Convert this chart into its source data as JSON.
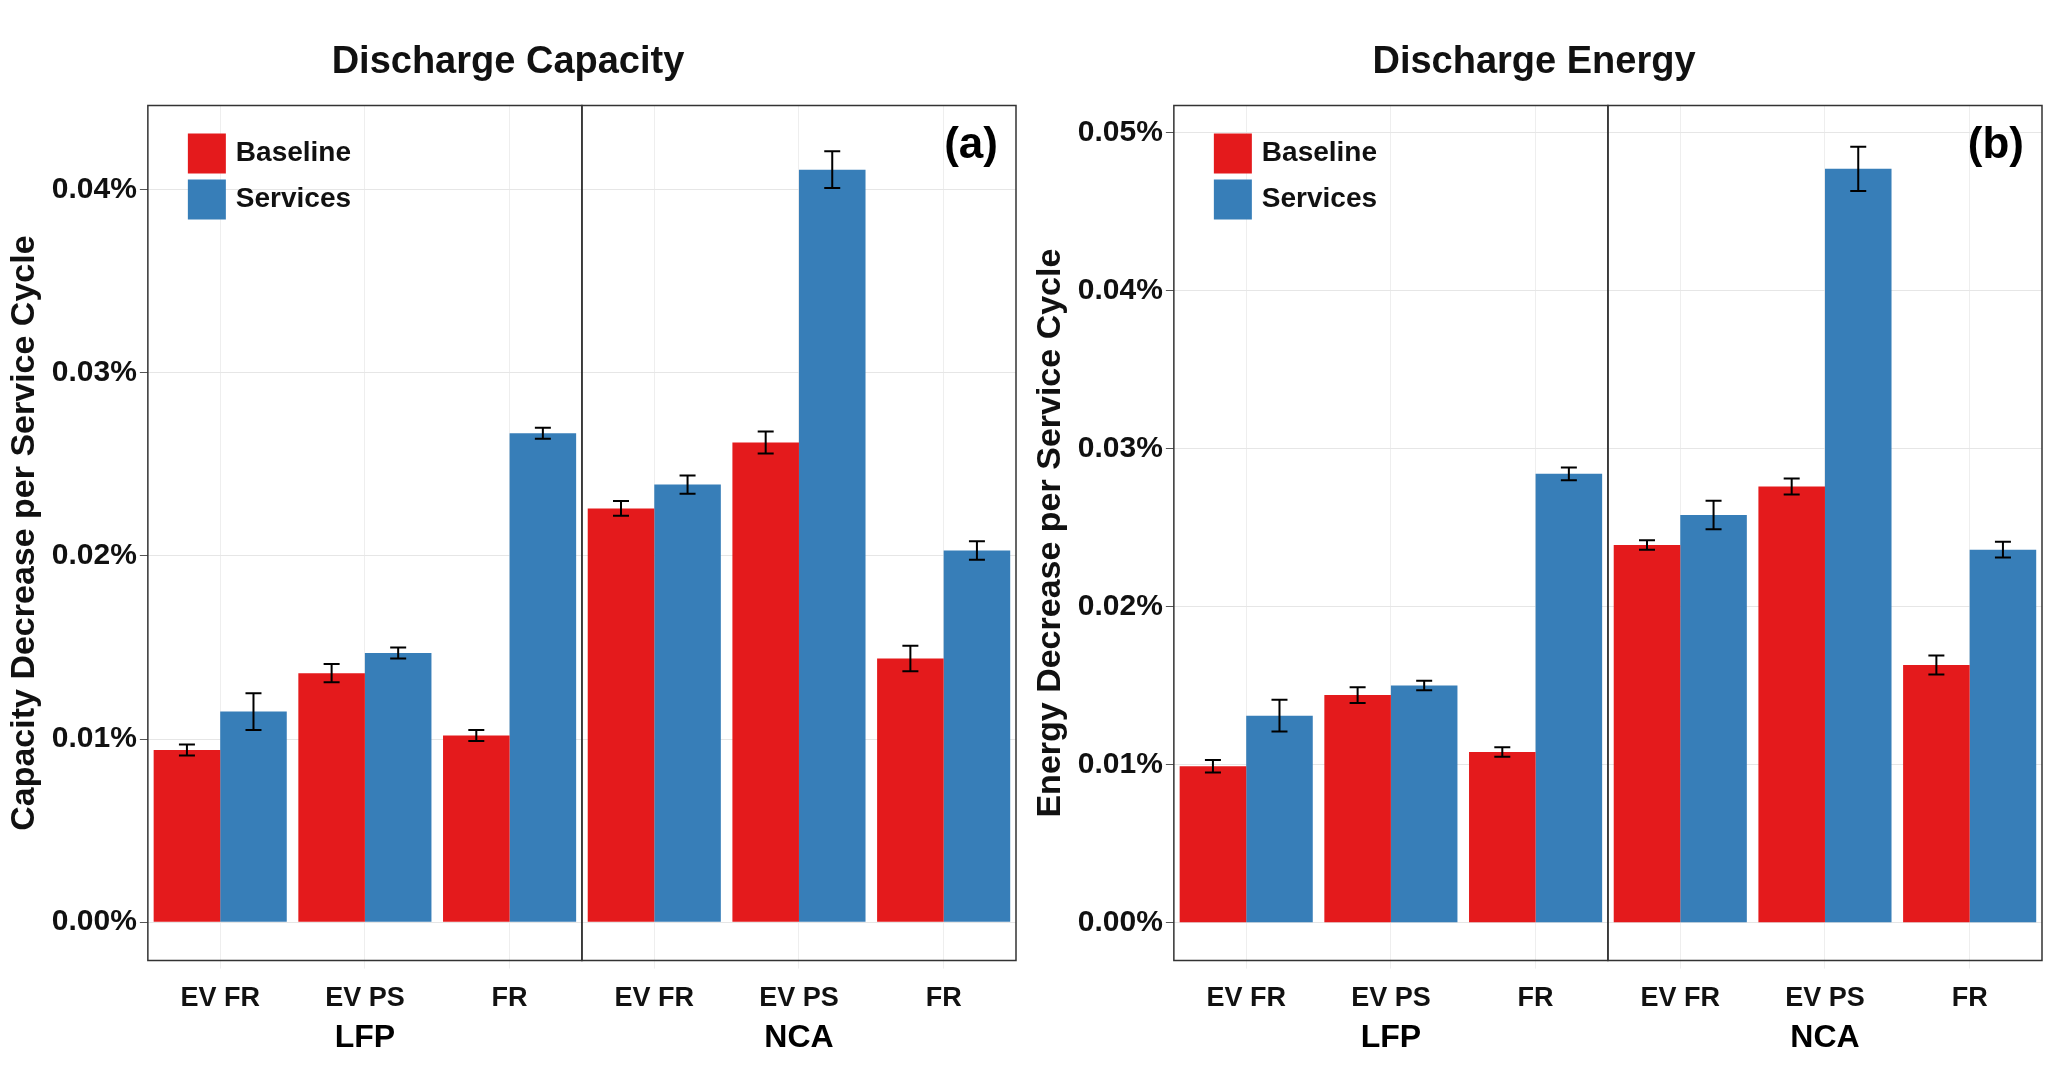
{
  "chart_data": [
    {
      "type": "bar",
      "title": "Discharge Capacity",
      "ylabel": "Capacity Decrease per Service Cycle",
      "categories": [
        "EV FR",
        "EV PS",
        "FR",
        "EV FR",
        "EV PS",
        "FR"
      ],
      "annotations": [
        "(a)",
        "LFP",
        "NCA"
      ],
      "legend": "top left",
      "grid": true,
      "ylim": [
        -0.0021,
        0.0446
      ],
      "yticks": [
        {
          "value": 0,
          "label": "0.00%"
        },
        {
          "value": 0.01,
          "label": "0.01%"
        },
        {
          "value": 0.02,
          "label": "0.02%"
        },
        {
          "value": 0.03,
          "label": "0.03%"
        },
        {
          "value": 0.04,
          "label": "0.04%"
        }
      ],
      "series": [
        {
          "name": "Baseline",
          "color": "#e41a1c",
          "values": [
            0.0094,
            0.0136,
            0.0102,
            0.0226,
            0.0262,
            0.0144
          ],
          "errors": [
            0.0003,
            0.0005,
            0.0003,
            0.0004,
            0.0006,
            0.0007
          ]
        },
        {
          "name": "Services",
          "color": "#377eb8",
          "values": [
            0.0115,
            0.0147,
            0.0267,
            0.0239,
            0.0411,
            0.0203
          ],
          "errors": [
            0.001,
            0.0003,
            0.0003,
            0.0005,
            0.001,
            0.0005
          ]
        }
      ]
    },
    {
      "type": "bar",
      "title": "Discharge Energy",
      "ylabel": "Energy Decrease per Service Cycle",
      "categories": [
        "EV FR",
        "EV PS",
        "FR",
        "EV FR",
        "EV PS",
        "FR"
      ],
      "annotations": [
        "(b)",
        "LFP",
        "NCA"
      ],
      "legend": "top left",
      "grid": true,
      "ylim": [
        -0.0024,
        0.0517
      ],
      "yticks": [
        {
          "value": 0,
          "label": "0.00%"
        },
        {
          "value": 0.01,
          "label": "0.01%"
        },
        {
          "value": 0.02,
          "label": "0.02%"
        },
        {
          "value": 0.03,
          "label": "0.03%"
        },
        {
          "value": 0.04,
          "label": "0.04%"
        },
        {
          "value": 0.05,
          "label": "0.05%"
        }
      ],
      "series": [
        {
          "name": "Baseline",
          "color": "#e41a1c",
          "values": [
            0.0099,
            0.0144,
            0.0108,
            0.0239,
            0.0276,
            0.0163
          ],
          "errors": [
            0.0004,
            0.0005,
            0.0003,
            0.0003,
            0.0005,
            0.0006
          ]
        },
        {
          "name": "Services",
          "color": "#377eb8",
          "values": [
            0.0131,
            0.015,
            0.0284,
            0.0258,
            0.0477,
            0.0236
          ],
          "errors": [
            0.001,
            0.0003,
            0.0004,
            0.0009,
            0.0014,
            0.0005
          ]
        }
      ]
    }
  ]
}
